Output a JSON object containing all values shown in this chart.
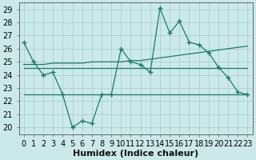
{
  "xlabel": "Humidex (Indice chaleur)",
  "xlim": [
    -0.5,
    23.5
  ],
  "ylim": [
    19.5,
    29.5
  ],
  "yticks": [
    20,
    21,
    22,
    23,
    24,
    25,
    26,
    27,
    28,
    29
  ],
  "xticks": [
    0,
    1,
    2,
    3,
    4,
    5,
    6,
    7,
    8,
    9,
    10,
    11,
    12,
    13,
    14,
    15,
    16,
    17,
    18,
    19,
    20,
    21,
    22,
    23
  ],
  "bg_color": "#cce9e9",
  "grid_color": "#a8d0d0",
  "line_color": "#1a7a6a",
  "line1_x": [
    0,
    1,
    2,
    3,
    4,
    5,
    6,
    7,
    8,
    9,
    10,
    11,
    12,
    13,
    14,
    15,
    16,
    17,
    18,
    19,
    20,
    21,
    22,
    23
  ],
  "line1_y": [
    26.5,
    25.0,
    24.0,
    24.2,
    22.5,
    20.0,
    20.5,
    20.3,
    22.5,
    22.5,
    26.0,
    25.0,
    24.8,
    24.2,
    29.1,
    27.2,
    28.1,
    26.5,
    26.3,
    25.7,
    24.6,
    23.8,
    22.7,
    22.5
  ],
  "line2_x": [
    0,
    1,
    2,
    3,
    4,
    5,
    6,
    7,
    8,
    9,
    10,
    11,
    12,
    13,
    14,
    15,
    16,
    17,
    18,
    19,
    20,
    21,
    22,
    23
  ],
  "line2_y": [
    24.8,
    24.8,
    24.8,
    24.9,
    24.9,
    24.9,
    24.9,
    25.0,
    25.0,
    25.0,
    25.0,
    25.1,
    25.1,
    25.2,
    25.3,
    25.4,
    25.5,
    25.6,
    25.7,
    25.8,
    25.9,
    26.0,
    26.1,
    26.2
  ],
  "line3_x": [
    0,
    1,
    2,
    3,
    4,
    5,
    6,
    7,
    8,
    9,
    10,
    11,
    12,
    13,
    14,
    15,
    16,
    17,
    18,
    19,
    20,
    21,
    22,
    23
  ],
  "line3_y": [
    24.5,
    24.5,
    24.5,
    24.5,
    24.5,
    24.5,
    24.5,
    24.5,
    24.5,
    24.5,
    24.5,
    24.5,
    24.5,
    24.5,
    24.5,
    24.5,
    24.5,
    24.5,
    24.5,
    24.5,
    24.5,
    24.5,
    24.5,
    24.5
  ],
  "line4_x": [
    0,
    3,
    4,
    9,
    23
  ],
  "line4_y": [
    22.5,
    22.5,
    22.5,
    22.5,
    22.5
  ],
  "ticklabel_fontsize": 7,
  "xlabel_fontsize": 8
}
